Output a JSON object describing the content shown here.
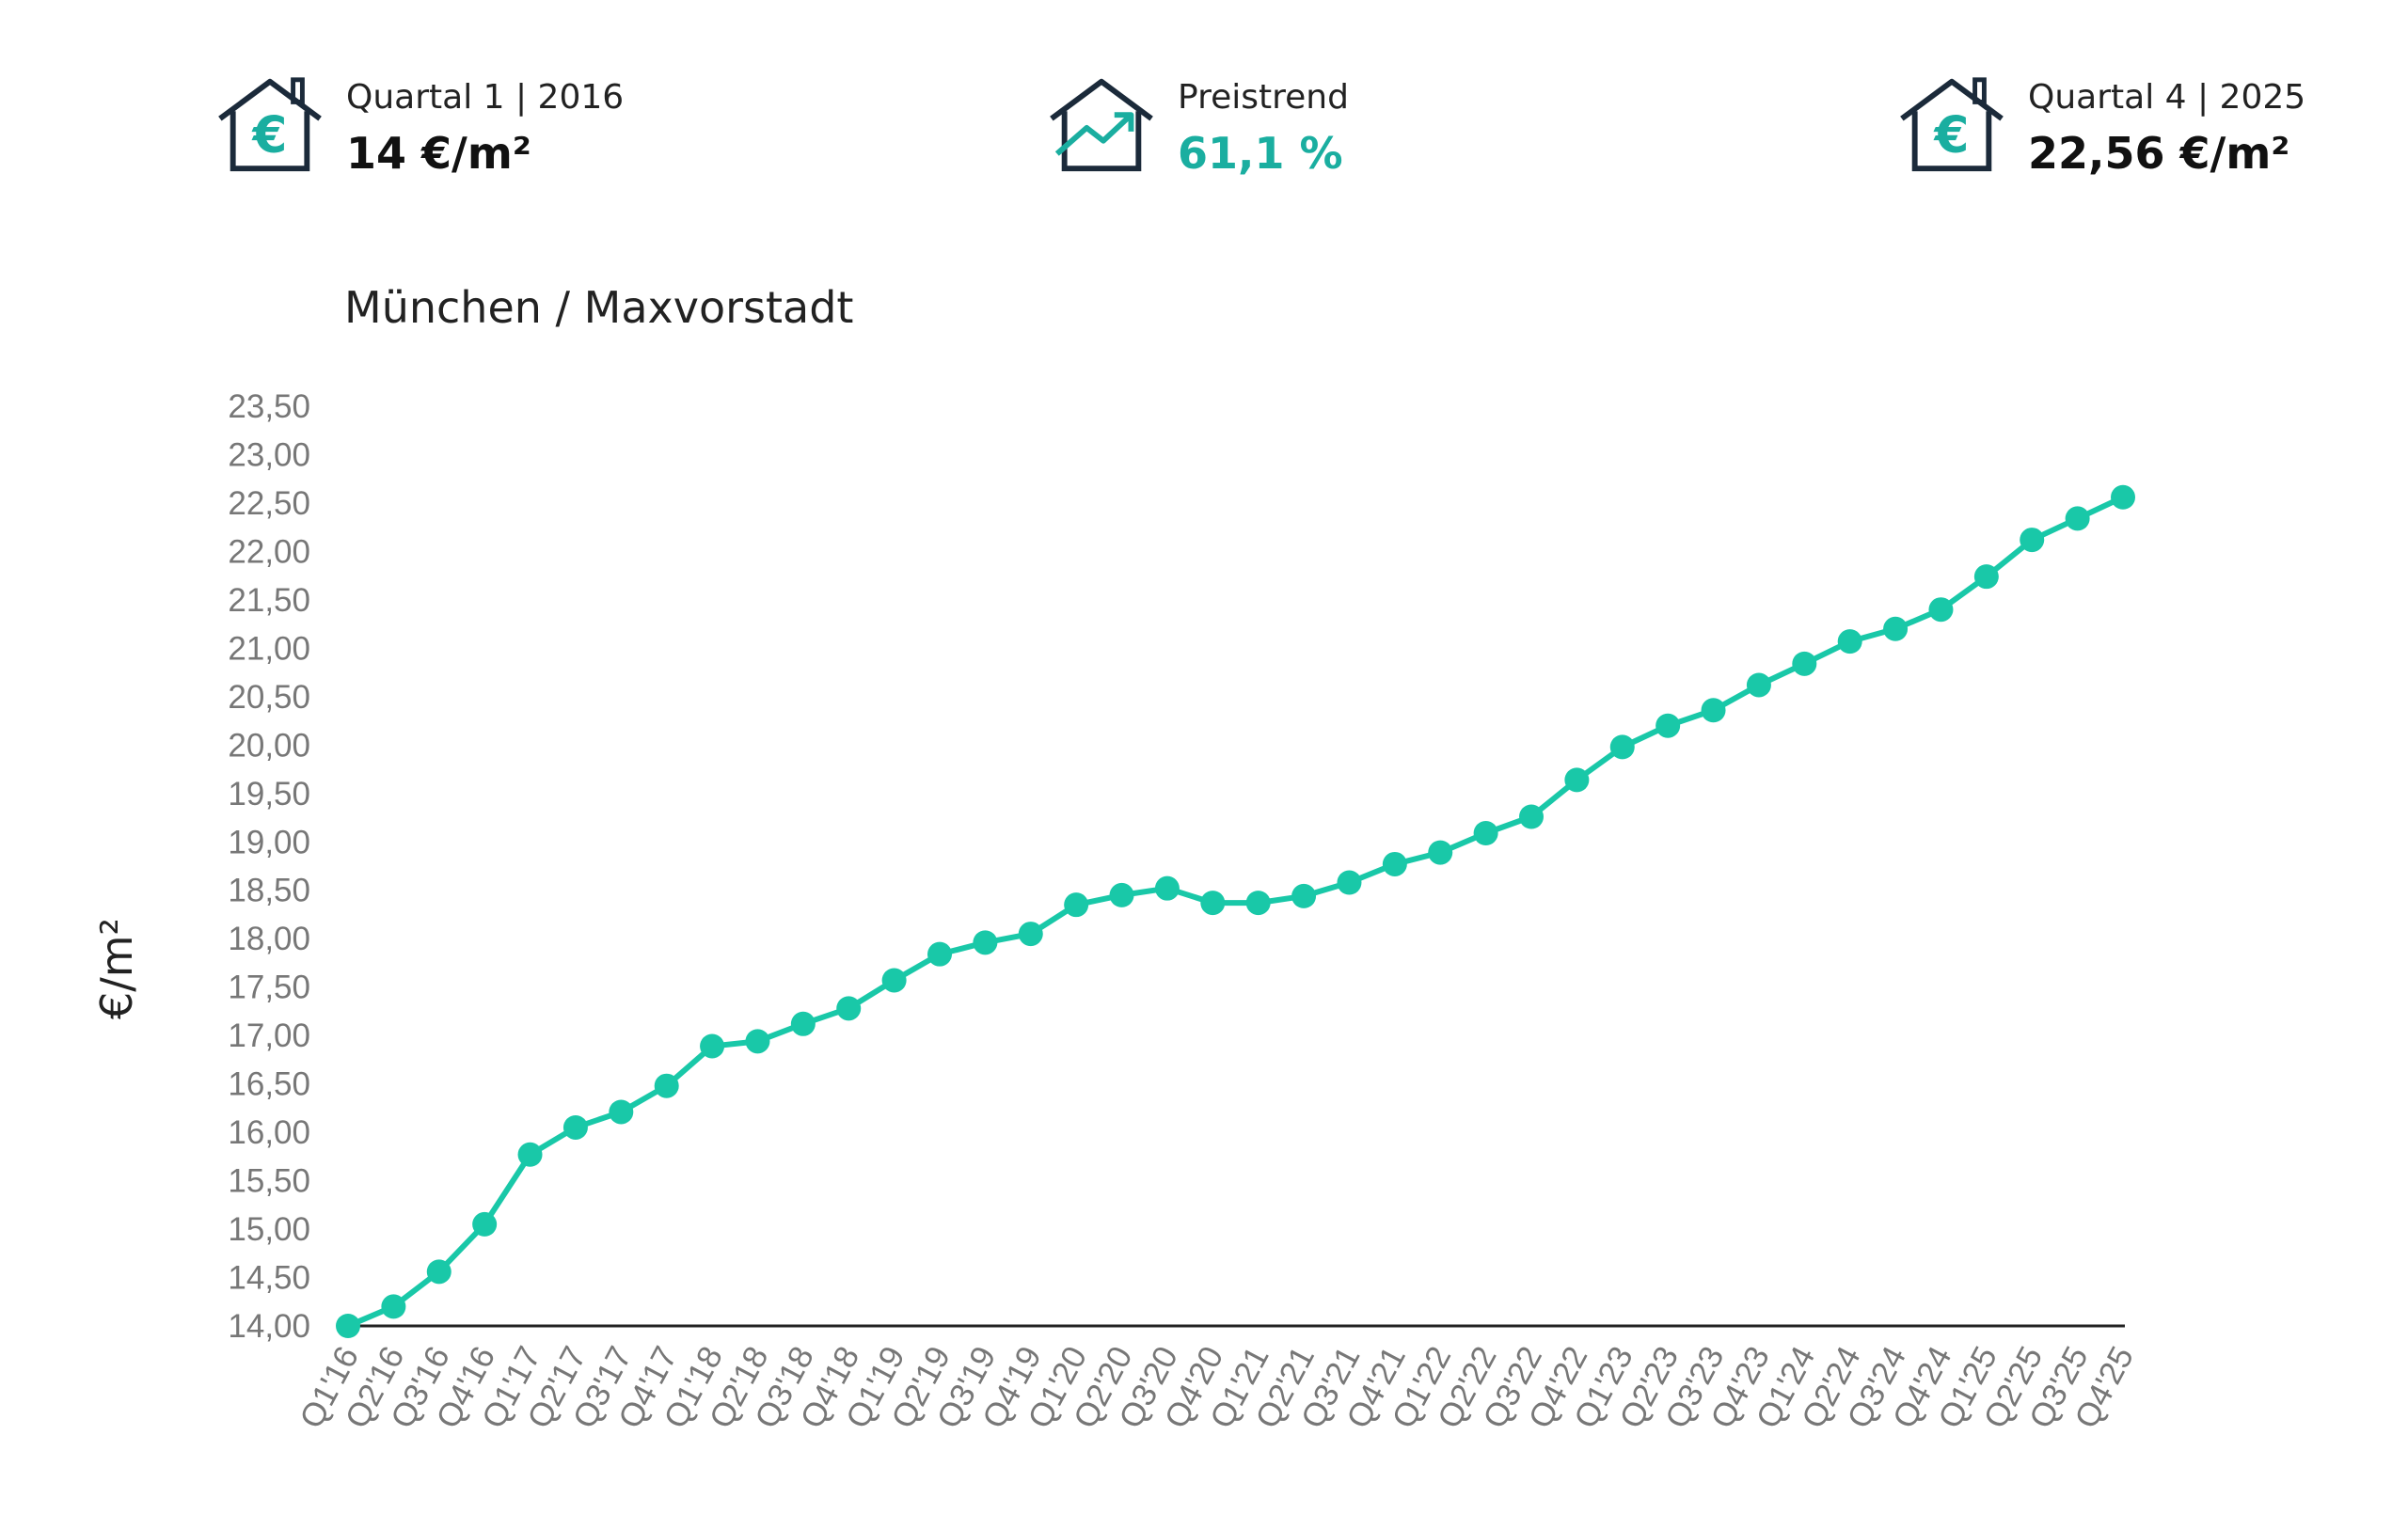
{
  "kpis": {
    "start": {
      "label": "Quartal 1 | 2016",
      "value": "14 €/m²",
      "icon": "house-euro-icon"
    },
    "trend": {
      "label": "Preistrend",
      "value": "61,1 %",
      "icon": "house-trend-up-icon"
    },
    "end": {
      "label": "Quartal 4 | 2025",
      "value": "22,56 €/m²",
      "icon": "house-euro-icon"
    }
  },
  "colors": {
    "accent": "#19c8a8",
    "kpi_accent": "#1aaea0",
    "icon_dark": "#1b2a3a",
    "axis": "#222222",
    "tick": "#777777"
  },
  "chart_data": {
    "type": "line",
    "title": "München / Maxvorstadt",
    "xlabel": "",
    "ylabel": "€/m²",
    "ylim": [
      14.0,
      23.5
    ],
    "y_ticks": [
      "14,00",
      "14,50",
      "15,00",
      "15,50",
      "16,00",
      "16,50",
      "17,00",
      "17,50",
      "18,00",
      "18,50",
      "19,00",
      "19,50",
      "20,00",
      "20,50",
      "21,00",
      "21,50",
      "22,00",
      "22,50",
      "23,00",
      "23,50"
    ],
    "grid": false,
    "legend": "none",
    "categories": [
      "Q1'16",
      "Q2'16",
      "Q3'16",
      "Q4'16",
      "Q1'17",
      "Q2'17",
      "Q3'17",
      "Q4'17",
      "Q1'18",
      "Q2'18",
      "Q3'18",
      "Q4'18",
      "Q1'19",
      "Q2'19",
      "Q3'19",
      "Q4'19",
      "Q1'20",
      "Q2'20",
      "Q3'20",
      "Q4'20",
      "Q1'21",
      "Q2'21",
      "Q3'21",
      "Q4'21",
      "Q1'22",
      "Q2'22",
      "Q3'22",
      "Q4'22",
      "Q1'23",
      "Q2'23",
      "Q3'23",
      "Q4'23",
      "Q1'24",
      "Q2'24",
      "Q3'24",
      "Q4'24",
      "Q1'25",
      "Q2'25",
      "Q3'25",
      "Q4'25"
    ],
    "series": [
      {
        "values": [
          14.0,
          14.2,
          14.56,
          15.05,
          15.77,
          16.05,
          16.21,
          16.48,
          16.89,
          16.94,
          17.12,
          17.28,
          17.57,
          17.84,
          17.96,
          18.05,
          18.35,
          18.45,
          18.52,
          18.37,
          18.37,
          18.44,
          18.58,
          18.77,
          18.89,
          19.09,
          19.26,
          19.64,
          19.98,
          20.2,
          20.36,
          20.62,
          20.84,
          21.07,
          21.2,
          21.4,
          21.74,
          22.12,
          22.34,
          22.56
        ]
      }
    ]
  }
}
